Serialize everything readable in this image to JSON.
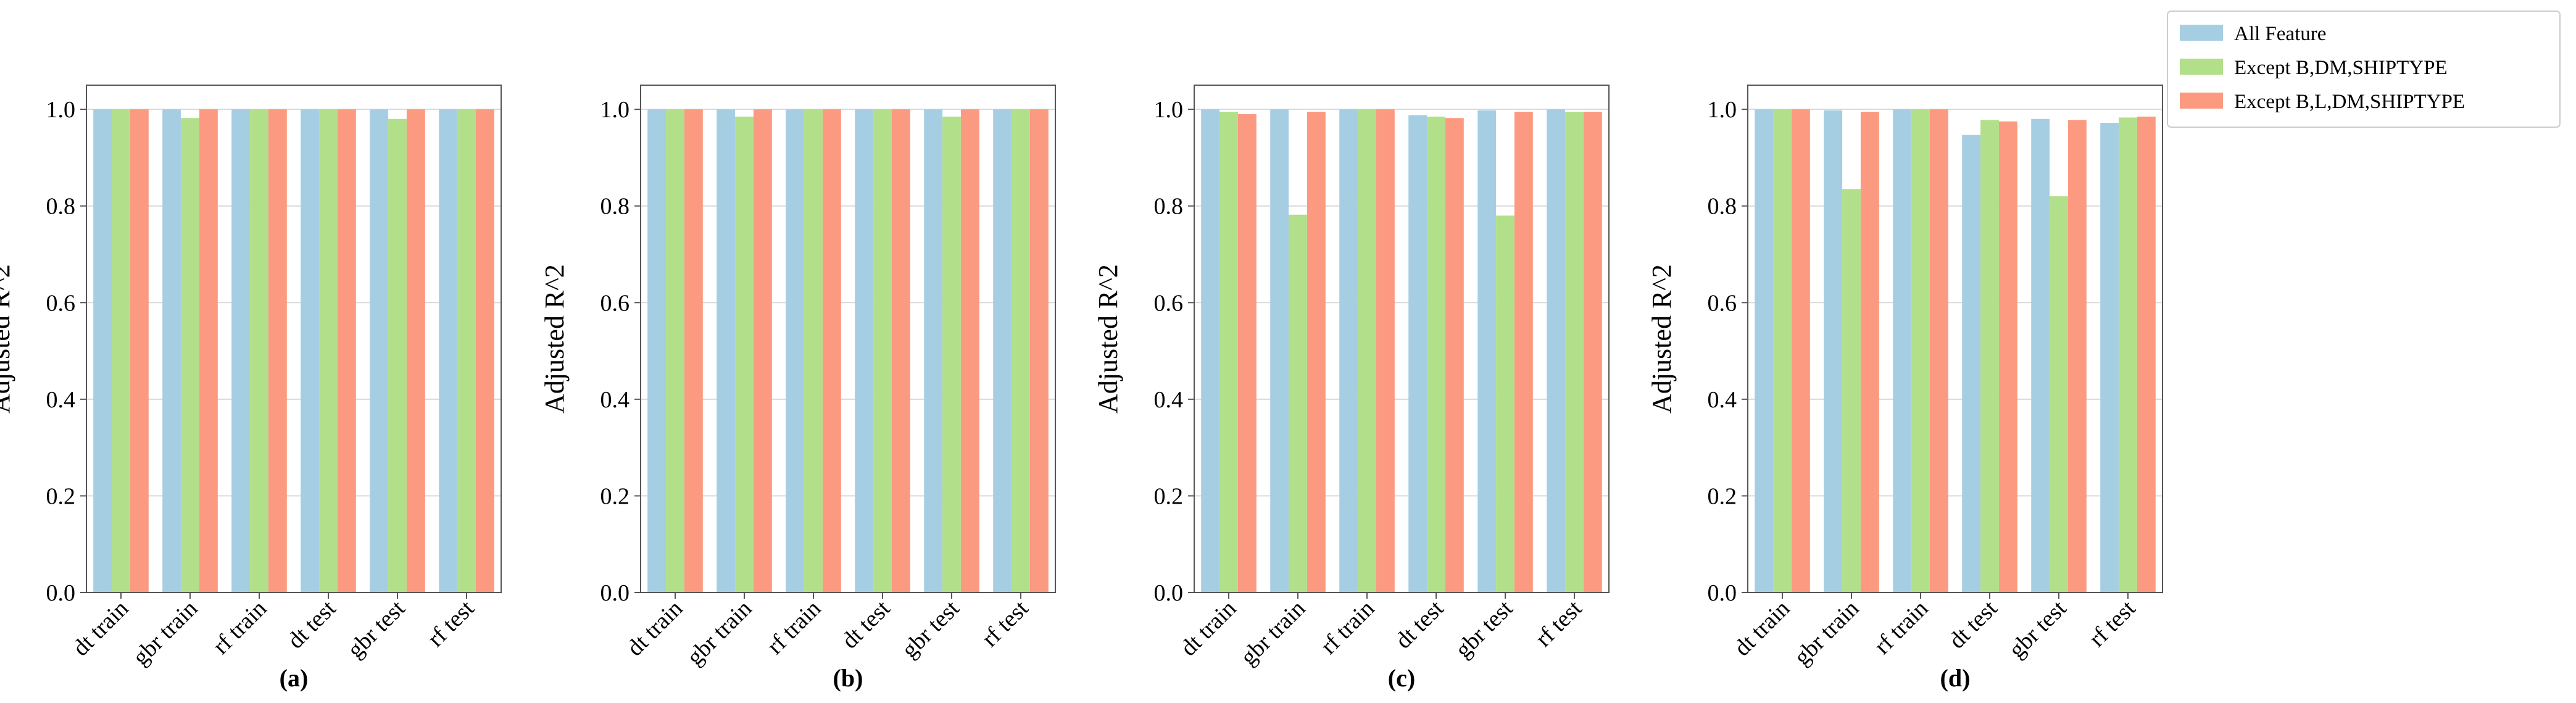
{
  "legend": {
    "entries": [
      "All Feature",
      "Except B,DM,SHIPTYPE",
      "Except B,L,DM,SHIPTYPE"
    ]
  },
  "colors": {
    "series": [
      "#a6cee3",
      "#b2df8a",
      "#fb9a80"
    ],
    "grid": "#d9d9d9",
    "axis": "#555555"
  },
  "chart_data": [
    {
      "type": "bar",
      "panel": "(a)",
      "categories": [
        "dt train",
        "gbr train",
        "rf train",
        "dt test",
        "gbr test",
        "rf test"
      ],
      "ylabel": "Adjusted R^2",
      "ylim": [
        0,
        1.05
      ],
      "yticks": [
        "0.0",
        "0.2",
        "0.4",
        "0.6",
        "0.8",
        "1.0"
      ],
      "grid": true,
      "series": [
        {
          "name": "All Feature",
          "values": [
            1.0,
            1.0,
            1.0,
            1.0,
            1.0,
            1.0
          ]
        },
        {
          "name": "Except B,DM,SHIPTYPE",
          "values": [
            1.0,
            0.982,
            1.0,
            1.0,
            0.98,
            1.0
          ]
        },
        {
          "name": "Except B,L,DM,SHIPTYPE",
          "values": [
            1.0,
            1.0,
            1.0,
            1.0,
            1.0,
            1.0
          ]
        }
      ]
    },
    {
      "type": "bar",
      "panel": "(b)",
      "categories": [
        "dt train",
        "gbr train",
        "rf train",
        "dt test",
        "gbr test",
        "rf test"
      ],
      "ylabel": "Adjusted R^2",
      "ylim": [
        0,
        1.05
      ],
      "yticks": [
        "0.0",
        "0.2",
        "0.4",
        "0.6",
        "0.8",
        "1.0"
      ],
      "grid": true,
      "series": [
        {
          "name": "All Feature",
          "values": [
            1.0,
            1.0,
            1.0,
            1.0,
            1.0,
            1.0
          ]
        },
        {
          "name": "Except B,DM,SHIPTYPE",
          "values": [
            1.0,
            0.985,
            1.0,
            1.0,
            0.985,
            1.0
          ]
        },
        {
          "name": "Except B,L,DM,SHIPTYPE",
          "values": [
            1.0,
            1.0,
            1.0,
            1.0,
            1.0,
            1.0
          ]
        }
      ]
    },
    {
      "type": "bar",
      "panel": "(c)",
      "categories": [
        "dt train",
        "gbr train",
        "rf train",
        "dt test",
        "gbr test",
        "rf test"
      ],
      "ylabel": "Adjusted R^2",
      "ylim": [
        0,
        1.05
      ],
      "yticks": [
        "0.0",
        "0.2",
        "0.4",
        "0.6",
        "0.8",
        "1.0"
      ],
      "grid": true,
      "series": [
        {
          "name": "All Feature",
          "values": [
            1.0,
            1.0,
            1.0,
            0.988,
            0.998,
            1.0
          ]
        },
        {
          "name": "Except B,DM,SHIPTYPE",
          "values": [
            0.995,
            0.782,
            1.0,
            0.985,
            0.78,
            0.995
          ]
        },
        {
          "name": "Except B,L,DM,SHIPTYPE",
          "values": [
            0.99,
            0.995,
            1.0,
            0.982,
            0.995,
            0.995
          ]
        }
      ]
    },
    {
      "type": "bar",
      "panel": "(d)",
      "categories": [
        "dt train",
        "gbr train",
        "rf train",
        "dt test",
        "gbr test",
        "rf test"
      ],
      "ylabel": "Adjusted R^2",
      "ylim": [
        0,
        1.05
      ],
      "yticks": [
        "0.0",
        "0.2",
        "0.4",
        "0.6",
        "0.8",
        "1.0"
      ],
      "grid": true,
      "series": [
        {
          "name": "All Feature",
          "values": [
            1.0,
            0.998,
            1.0,
            0.947,
            0.98,
            0.972
          ]
        },
        {
          "name": "Except B,DM,SHIPTYPE",
          "values": [
            1.0,
            0.835,
            1.0,
            0.978,
            0.82,
            0.983
          ]
        },
        {
          "name": "Except B,L,DM,SHIPTYPE",
          "values": [
            1.0,
            0.995,
            1.0,
            0.975,
            0.978,
            0.985
          ]
        }
      ]
    }
  ]
}
